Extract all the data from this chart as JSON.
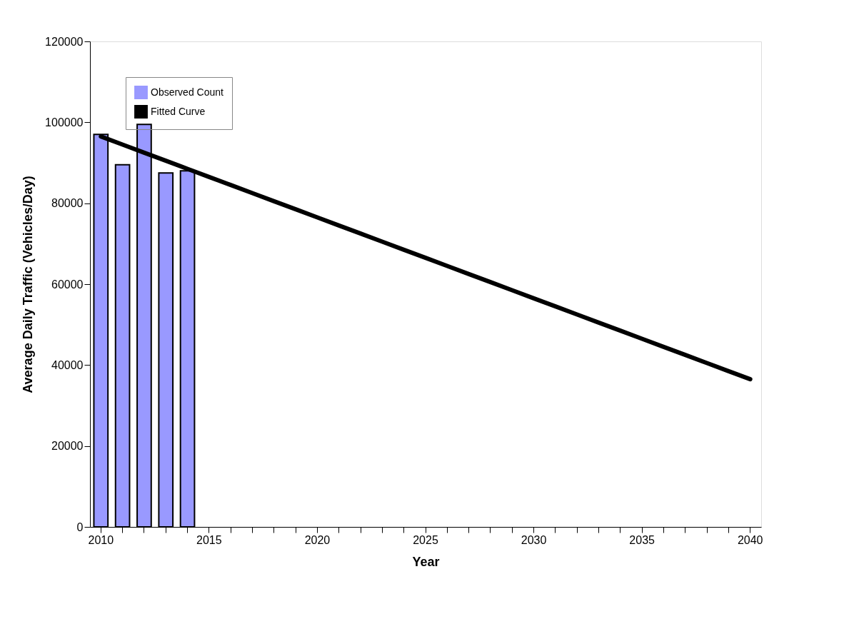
{
  "chart_data": {
    "type": "bar",
    "xlabel": "Year",
    "ylabel": "Average Daily Traffic (Vehicles/Day)",
    "categories": [
      "2010",
      null,
      null,
      null,
      null,
      "2015",
      null,
      null,
      null,
      null,
      "2020",
      null,
      null,
      null,
      null,
      "2025",
      null,
      null,
      null,
      null,
      "2030",
      null,
      null,
      null,
      null,
      "2035",
      null,
      null,
      null,
      null,
      "2040"
    ],
    "series": [
      {
        "name": "Observed Count",
        "color": "#9999ff",
        "values": [
          97000,
          89500,
          99500,
          87500,
          88000,
          null,
          null,
          null,
          null,
          null,
          null,
          null,
          null,
          null,
          null,
          null,
          null,
          null,
          null,
          null,
          null,
          null,
          null,
          null,
          null,
          null,
          null,
          null,
          null,
          null,
          null
        ]
      },
      {
        "name": "Fitted Curve",
        "type": "line",
        "color": "#000000",
        "values": [
          96500,
          94500,
          92500,
          90500,
          88500,
          86500,
          84500,
          82500,
          80500,
          78500,
          76500,
          74500,
          72500,
          70500,
          68500,
          66500,
          64500,
          62500,
          60500,
          58500,
          56500,
          54500,
          52500,
          50500,
          48500,
          46500,
          44500,
          42500,
          40500,
          38500,
          36500
        ]
      }
    ],
    "ylim": [
      0,
      120000
    ],
    "yticks": [
      0,
      20000,
      40000,
      60000,
      80000,
      100000,
      120000
    ],
    "grid": false,
    "legend": "top left"
  }
}
